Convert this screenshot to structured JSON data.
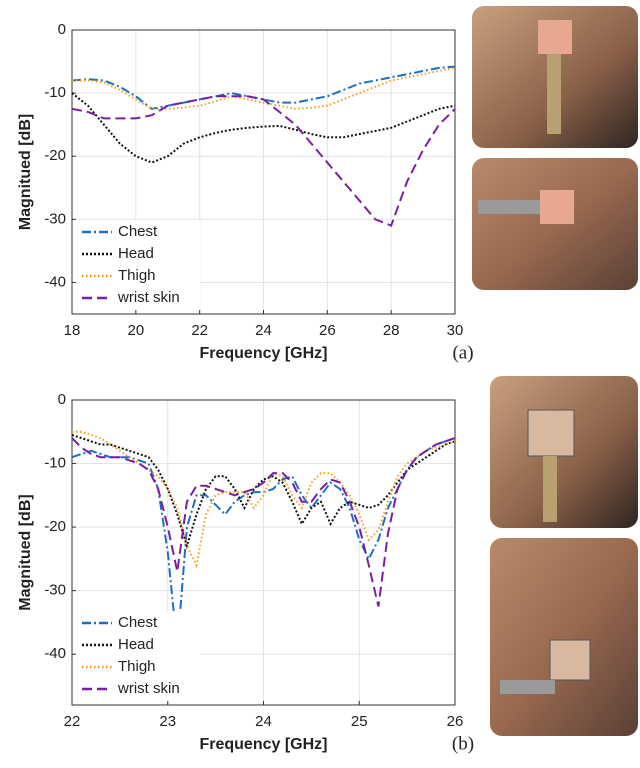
{
  "chart_data": [
    {
      "type": "line",
      "xlabel": "Frequency [GHz]",
      "ylabel": "Magnitued [dB]",
      "panel_label": "(a)",
      "xlim": [
        18,
        30
      ],
      "ylim": [
        -45,
        0
      ],
      "xticks": [
        18,
        20,
        22,
        24,
        26,
        28,
        30
      ],
      "yticks": [
        -40,
        -30,
        -20,
        -10,
        0
      ],
      "grid": true,
      "legend": "lower left",
      "x": [
        18,
        18.5,
        19,
        19.5,
        20,
        20.5,
        21,
        21.5,
        22,
        22.5,
        23,
        23.5,
        24,
        24.5,
        25,
        25.5,
        26,
        26.5,
        27,
        27.5,
        28,
        28.5,
        29,
        29.5,
        30
      ],
      "series": [
        {
          "name": "Chest",
          "color": "#1f6fbf",
          "dash": "9 3 2 3",
          "values": [
            -8,
            -7.8,
            -8,
            -9,
            -10.5,
            -12.5,
            -12,
            -11.5,
            -11,
            -10.5,
            -10,
            -10.5,
            -11,
            -11.5,
            -11.5,
            -11,
            -10.5,
            -9.5,
            -8.5,
            -8,
            -7.5,
            -7,
            -6.5,
            -6,
            -5.8
          ]
        },
        {
          "name": "Head",
          "color": "#111111",
          "dash": "2 2",
          "values": [
            -10,
            -12,
            -15,
            -18,
            -20,
            -21,
            -20,
            -18,
            -17,
            -16.3,
            -15.8,
            -15.5,
            -15.3,
            -15.2,
            -15.8,
            -16.5,
            -17,
            -17,
            -16.5,
            -16,
            -15.5,
            -14.5,
            -13.5,
            -12.5,
            -12
          ]
        },
        {
          "name": "Thigh",
          "color": "#f0a020",
          "dash": "1.5 2.5",
          "values": [
            -8,
            -8,
            -8.3,
            -9.5,
            -11,
            -12.5,
            -12.5,
            -12.3,
            -12,
            -11.3,
            -10.5,
            -11,
            -11.5,
            -12,
            -12.5,
            -12.3,
            -12,
            -11,
            -10,
            -9,
            -8,
            -7.5,
            -7,
            -6.5,
            -6
          ]
        },
        {
          "name": "wrist skin",
          "color": "#7a1fa2",
          "dash": "10 5",
          "values": [
            -12.5,
            -13,
            -14,
            -14,
            -14,
            -13.5,
            -12,
            -11.5,
            -11,
            -10.5,
            -10.5,
            -10.5,
            -11,
            -13,
            -15,
            -18,
            -21,
            -24,
            -27,
            -30,
            -31,
            -24,
            -19,
            -15,
            -12.5
          ]
        }
      ]
    },
    {
      "type": "line",
      "xlabel": "Frequency [GHz]",
      "ylabel": "Magnitued [dB]",
      "panel_label": "(b)",
      "xlim": [
        22,
        26
      ],
      "ylim": [
        -48,
        0
      ],
      "xticks": [
        22,
        23,
        24,
        25,
        26
      ],
      "yticks": [
        -40,
        -30,
        -20,
        -10,
        0
      ],
      "grid": true,
      "legend": "lower left",
      "x": [
        22,
        22.1,
        22.2,
        22.3,
        22.4,
        22.5,
        22.6,
        22.7,
        22.8,
        22.9,
        23,
        23.1,
        23.2,
        23.3,
        23.4,
        23.5,
        23.6,
        23.7,
        23.8,
        23.9,
        24,
        24.1,
        24.2,
        24.3,
        24.4,
        24.5,
        24.6,
        24.7,
        24.8,
        24.9,
        25,
        25.1,
        25.2,
        25.3,
        25.4,
        25.5,
        25.6,
        25.7,
        25.8,
        25.9,
        26
      ],
      "series": [
        {
          "name": "Chest",
          "color": "#1f6fbf",
          "dash": "9 3 2 3",
          "values": [
            -9,
            -8.5,
            -8,
            -8.5,
            -9,
            -9,
            -9,
            -9.5,
            -10,
            -14,
            -24,
            -39,
            -20,
            -15,
            -15,
            -16.5,
            -18,
            -16,
            -15,
            -14.5,
            -14.5,
            -14,
            -12.5,
            -12,
            -15,
            -17,
            -15,
            -13,
            -14,
            -17,
            -22,
            -25,
            -22,
            -17,
            -14,
            -11,
            -9,
            -8,
            -7,
            -6.5,
            -6
          ]
        },
        {
          "name": "Head",
          "color": "#111111",
          "dash": "2 2",
          "values": [
            -5.5,
            -6,
            -6.5,
            -7,
            -7,
            -7.5,
            -8,
            -8.5,
            -9,
            -11,
            -14,
            -18,
            -23,
            -18,
            -14,
            -12,
            -12,
            -14,
            -17,
            -14,
            -12.5,
            -12,
            -13,
            -16,
            -19.5,
            -17,
            -16,
            -19.5,
            -17,
            -16,
            -16.5,
            -17,
            -16.5,
            -15,
            -13,
            -11,
            -10,
            -9,
            -8,
            -7,
            -6.5
          ]
        },
        {
          "name": "Thigh",
          "color": "#f0a020",
          "dash": "1.5 2.5",
          "values": [
            -5,
            -5,
            -5.5,
            -6,
            -7,
            -8,
            -9,
            -10,
            -11,
            -12,
            -14,
            -17,
            -23,
            -26,
            -18,
            -15,
            -14.5,
            -14.5,
            -14.5,
            -17,
            -15,
            -11.5,
            -12,
            -15,
            -17,
            -13,
            -11.5,
            -11.5,
            -13,
            -15,
            -18,
            -22,
            -20.5,
            -16,
            -12,
            -10,
            -9,
            -8,
            -7.5,
            -7,
            -6.5
          ]
        },
        {
          "name": "wrist skin",
          "color": "#7a1fa2",
          "dash": "10 5",
          "values": [
            -6,
            -7.5,
            -8.5,
            -9,
            -9,
            -9,
            -9.5,
            -10,
            -11,
            -14,
            -20,
            -27,
            -16,
            -13.5,
            -13.5,
            -14,
            -14.5,
            -15,
            -14.5,
            -14,
            -13,
            -11.5,
            -11.5,
            -13,
            -16,
            -16,
            -14,
            -12.5,
            -13,
            -16,
            -20,
            -26,
            -32.5,
            -21,
            -14,
            -11,
            -9,
            -8,
            -7,
            -6.5,
            -6
          ]
        }
      ]
    }
  ]
}
